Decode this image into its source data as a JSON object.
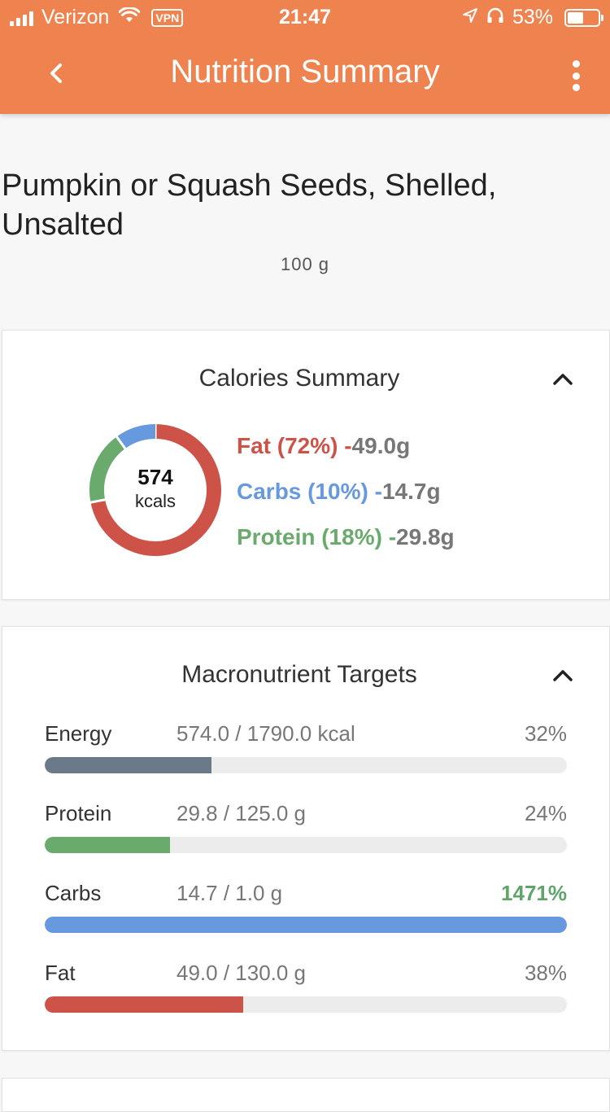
{
  "status_bar": {
    "carrier": "Verizon",
    "vpn": "VPN",
    "time": "21:47",
    "battery": "53%",
    "battery_level": 0.53
  },
  "header": {
    "title": "Nutrition Summary",
    "back_icon": "chevron-left-icon",
    "menu_icon": "more-vertical-icon",
    "color": "#ef8350"
  },
  "food": {
    "name": "Pumpkin or Squash Seeds, Shelled, Unsalted",
    "serving": "100 g"
  },
  "calories_summary": {
    "title": "Calories Summary",
    "kcals": "574",
    "kcals_unit": "kcals",
    "macros": [
      {
        "name": "Fat",
        "percent": 72,
        "label": "Fat (72%)",
        "amount": "49.0g",
        "color": "#cd5349"
      },
      {
        "name": "Carbs",
        "percent": 10,
        "label": "Carbs (10%)",
        "amount": "14.7g",
        "color": "#6699dd"
      },
      {
        "name": "Protein",
        "percent": 18,
        "label": "Protein (18%)",
        "amount": "29.8g",
        "color": "#6aaa6d"
      }
    ]
  },
  "macronutrient_targets": {
    "title": "Macronutrient Targets",
    "rows": [
      {
        "label": "Energy",
        "value": "574.0 / 1790.0 kcal",
        "percent": "32%",
        "fraction": 0.32,
        "color": "#6b7a88",
        "over": false
      },
      {
        "label": "Protein",
        "value": "29.8 / 125.0 g",
        "percent": "24%",
        "fraction": 0.24,
        "color": "#6aaa6d",
        "over": false
      },
      {
        "label": "Carbs",
        "value": "14.7 / 1.0 g",
        "percent": "1471%",
        "fraction": 1.0,
        "color": "#6699dd",
        "over": true
      },
      {
        "label": "Fat",
        "value": "49.0 / 130.0 g",
        "percent": "38%",
        "fraction": 0.38,
        "color": "#cd5349",
        "over": false
      }
    ]
  }
}
